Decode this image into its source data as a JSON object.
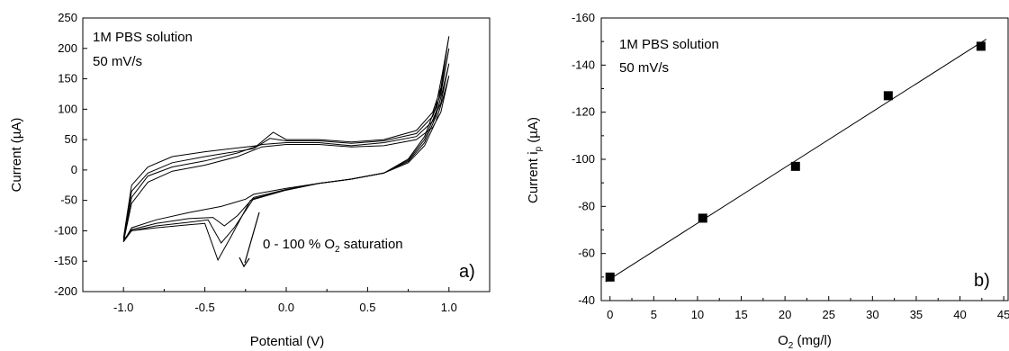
{
  "chart_data": [
    {
      "type": "line",
      "panel_label": "a)",
      "xlabel": "Potential (V)",
      "ylabel": "Current (µA)",
      "xlim": [
        -1.25,
        1.25
      ],
      "ylim": [
        -200,
        250
      ],
      "xticks": [
        -1.0,
        -0.5,
        0.0,
        0.5,
        1.0
      ],
      "xtick_labels": [
        "-1.0",
        "-0.5",
        "0.0",
        "0.5",
        "1.0"
      ],
      "yticks": [
        -200,
        -150,
        -100,
        -50,
        0,
        50,
        100,
        150,
        200,
        250
      ],
      "ytick_labels": [
        "-200",
        "-150",
        "-100",
        "-50",
        "0",
        "50",
        "100",
        "150",
        "200",
        "250"
      ],
      "annotations": [
        "1M PBS solution",
        "50 mV/s"
      ],
      "arrow_annotation": {
        "pre": "0 - 100 % O",
        "sub": "2",
        "post": " saturation"
      },
      "legend": "none",
      "grid": false,
      "series": [
        {
          "forward": [
            [
              -1.0,
              -118
            ],
            [
              -0.95,
              -95
            ],
            [
              -0.8,
              -82
            ],
            [
              -0.6,
              -70
            ],
            [
              -0.4,
              -60
            ],
            [
              -0.25,
              -48
            ],
            [
              -0.2,
              -40
            ],
            [
              0.0,
              -30
            ],
            [
              0.2,
              -22
            ],
            [
              0.4,
              -15
            ],
            [
              0.6,
              -5
            ],
            [
              0.75,
              12
            ],
            [
              0.85,
              40
            ],
            [
              0.92,
              80
            ],
            [
              0.96,
              115
            ],
            [
              1.0,
              155
            ]
          ],
          "reverse": [
            [
              1.0,
              155
            ],
            [
              0.95,
              95
            ],
            [
              0.9,
              70
            ],
            [
              0.8,
              50
            ],
            [
              0.6,
              40
            ],
            [
              0.4,
              38
            ],
            [
              0.2,
              42
            ],
            [
              0.0,
              42
            ],
            [
              -0.15,
              38
            ],
            [
              -0.3,
              22
            ],
            [
              -0.5,
              8
            ],
            [
              -0.7,
              -2
            ],
            [
              -0.85,
              -20
            ],
            [
              -0.95,
              -55
            ],
            [
              -1.0,
              -118
            ]
          ]
        },
        {
          "forward": [
            [
              -1.0,
              -118
            ],
            [
              -0.95,
              -98
            ],
            [
              -0.8,
              -88
            ],
            [
              -0.6,
              -80
            ],
            [
              -0.45,
              -78
            ],
            [
              -0.38,
              -92
            ],
            [
              -0.3,
              -75
            ],
            [
              -0.2,
              -45
            ],
            [
              0.0,
              -32
            ],
            [
              0.2,
              -22
            ],
            [
              0.4,
              -15
            ],
            [
              0.6,
              -5
            ],
            [
              0.75,
              14
            ],
            [
              0.85,
              45
            ],
            [
              0.92,
              88
            ],
            [
              0.96,
              130
            ],
            [
              1.0,
              175
            ]
          ],
          "reverse": [
            [
              1.0,
              175
            ],
            [
              0.95,
              110
            ],
            [
              0.9,
              80
            ],
            [
              0.8,
              55
            ],
            [
              0.6,
              45
            ],
            [
              0.4,
              40
            ],
            [
              0.2,
              45
            ],
            [
              0.0,
              45
            ],
            [
              -0.15,
              42
            ],
            [
              -0.3,
              28
            ],
            [
              -0.5,
              15
            ],
            [
              -0.7,
              5
            ],
            [
              -0.85,
              -10
            ],
            [
              -0.95,
              -45
            ],
            [
              -1.0,
              -118
            ]
          ]
        },
        {
          "forward": [
            [
              -1.0,
              -118
            ],
            [
              -0.95,
              -100
            ],
            [
              -0.8,
              -92
            ],
            [
              -0.6,
              -86
            ],
            [
              -0.48,
              -82
            ],
            [
              -0.4,
              -120
            ],
            [
              -0.32,
              -95
            ],
            [
              -0.2,
              -47
            ],
            [
              0.0,
              -33
            ],
            [
              0.2,
              -22
            ],
            [
              0.4,
              -15
            ],
            [
              0.6,
              -5
            ],
            [
              0.75,
              16
            ],
            [
              0.85,
              50
            ],
            [
              0.92,
              95
            ],
            [
              0.96,
              145
            ],
            [
              1.0,
              200
            ]
          ],
          "reverse": [
            [
              1.0,
              200
            ],
            [
              0.95,
              125
            ],
            [
              0.9,
              88
            ],
            [
              0.8,
              60
            ],
            [
              0.6,
              48
            ],
            [
              0.4,
              44
            ],
            [
              0.2,
              48
            ],
            [
              0.0,
              48
            ],
            [
              -0.1,
              52
            ],
            [
              -0.2,
              35
            ],
            [
              -0.5,
              22
            ],
            [
              -0.7,
              12
            ],
            [
              -0.85,
              -5
            ],
            [
              -0.95,
              -35
            ],
            [
              -1.0,
              -115
            ]
          ]
        },
        {
          "forward": [
            [
              -1.0,
              -115
            ],
            [
              -0.95,
              -100
            ],
            [
              -0.8,
              -95
            ],
            [
              -0.6,
              -90
            ],
            [
              -0.5,
              -88
            ],
            [
              -0.42,
              -148
            ],
            [
              -0.34,
              -110
            ],
            [
              -0.22,
              -50
            ],
            [
              0.0,
              -33
            ],
            [
              0.2,
              -22
            ],
            [
              0.4,
              -15
            ],
            [
              0.6,
              -5
            ],
            [
              0.75,
              18
            ],
            [
              0.85,
              55
            ],
            [
              0.92,
              105
            ],
            [
              0.96,
              160
            ],
            [
              1.0,
              220
            ]
          ],
          "reverse": [
            [
              1.0,
              220
            ],
            [
              0.95,
              135
            ],
            [
              0.9,
              95
            ],
            [
              0.8,
              65
            ],
            [
              0.6,
              50
            ],
            [
              0.4,
              46
            ],
            [
              0.2,
              50
            ],
            [
              0.0,
              50
            ],
            [
              -0.08,
              62
            ],
            [
              -0.18,
              40
            ],
            [
              -0.5,
              30
            ],
            [
              -0.7,
              22
            ],
            [
              -0.85,
              5
            ],
            [
              -0.95,
              -25
            ],
            [
              -1.0,
              -112
            ]
          ]
        }
      ]
    },
    {
      "type": "scatter",
      "panel_label": "b)",
      "xlabel_pre": "O",
      "xlabel_sub": "2",
      "xlabel_post": " (mg/l)",
      "ylabel_pre": "Current  i",
      "ylabel_sub": "p",
      "ylabel_post": " (µA)",
      "xlim": [
        -1,
        45.5
      ],
      "ylim": [
        -40,
        -160
      ],
      "y_axis_inverted": true,
      "xticks": [
        0,
        5,
        10,
        15,
        20,
        25,
        30,
        35,
        40,
        45
      ],
      "xtick_labels": [
        "0",
        "5",
        "10",
        "15",
        "20",
        "25",
        "30",
        "35",
        "40",
        "45"
      ],
      "yticks": [
        -40,
        -60,
        -80,
        -100,
        -120,
        -140,
        -160
      ],
      "ytick_labels": [
        "-40",
        "-60",
        "-80",
        "-100",
        "-120",
        "-140",
        "-160"
      ],
      "annotations": [
        "1M PBS solution",
        "50 mV/s"
      ],
      "legend": "none",
      "grid": false,
      "x": [
        0,
        10.6,
        21.2,
        31.8,
        42.4
      ],
      "y": [
        -50,
        -75,
        -97,
        -127,
        -148
      ],
      "fit_line": {
        "x": [
          -0.5,
          43
        ],
        "y": [
          -48,
          -151
        ]
      }
    }
  ]
}
